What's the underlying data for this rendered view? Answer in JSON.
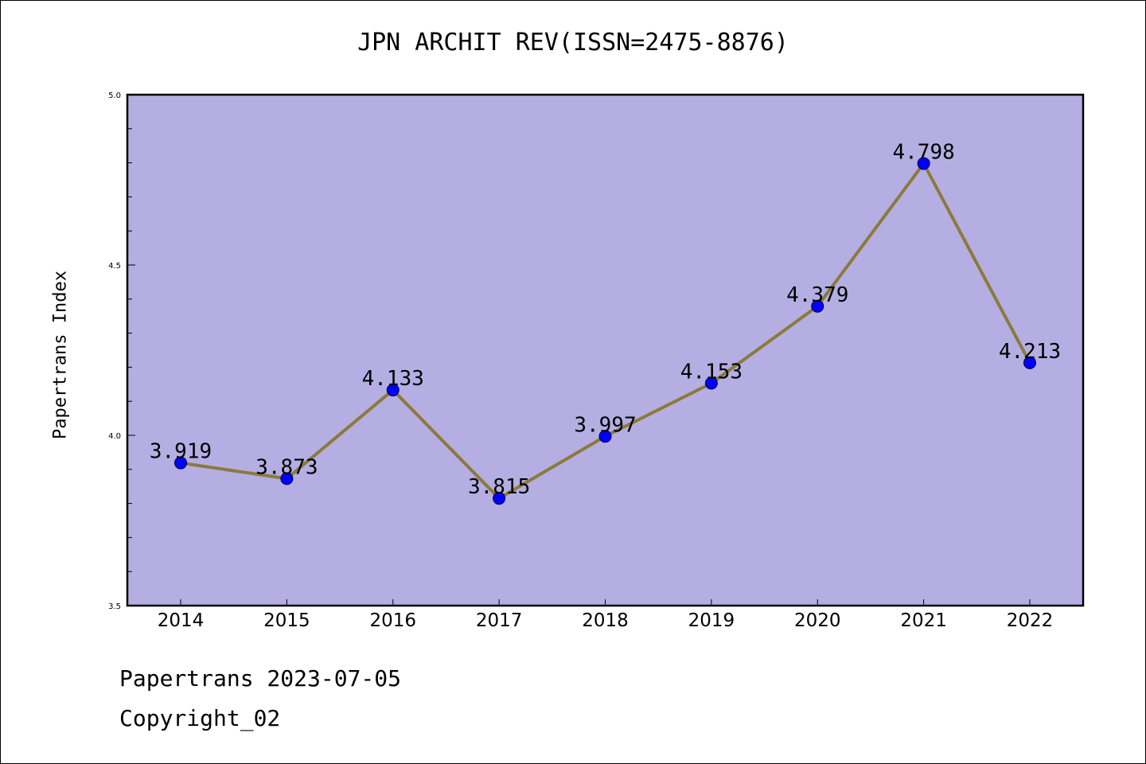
{
  "chart_data": {
    "type": "line",
    "title": "JPN ARCHIT REV(ISSN=2475-8876)",
    "xlabel": "",
    "ylabel": "Papertrans Index",
    "categories": [
      "2014",
      "2015",
      "2016",
      "2017",
      "2018",
      "2019",
      "2020",
      "2021",
      "2022"
    ],
    "series": [
      {
        "values": [
          3.919,
          3.873,
          4.133,
          3.815,
          3.997,
          4.153,
          4.379,
          4.798,
          4.213
        ],
        "labels": [
          "3.919",
          "3.873",
          "4.133",
          "3.815",
          "3.997",
          "4.153",
          "4.379",
          "4.798",
          "4.213"
        ]
      }
    ],
    "ylim": [
      3.5,
      5.0
    ],
    "yticks": [
      "3.5",
      "4.0",
      "4.5",
      "5.0"
    ],
    "grid": false,
    "colors": {
      "plot_background": "#b5aee3",
      "line": "#8b7a3a",
      "marker": "#0000ff"
    }
  },
  "footer": {
    "date_line": "Papertrans 2023-07-05",
    "copyright": "Copyright_02"
  }
}
